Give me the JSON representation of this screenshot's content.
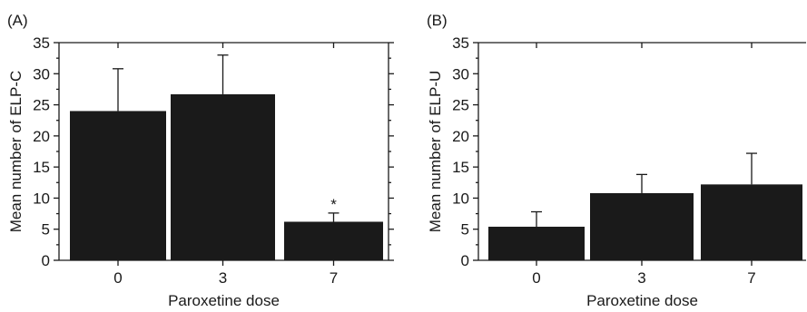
{
  "chart_data": [
    {
      "type": "bar",
      "panel_label": "(A)",
      "categories": [
        "0",
        "3",
        "7"
      ],
      "values": [
        24,
        26.7,
        6.2
      ],
      "error_upper": [
        30.8,
        33,
        7.6
      ],
      "annotations": [
        "",
        "",
        "*"
      ],
      "xlabel": "Paroxetine dose",
      "ylabel": "Mean number of ELP-C",
      "ylim": [
        0,
        35
      ],
      "yticks": [
        "0",
        "5",
        "10",
        "15",
        "20",
        "25",
        "30",
        "35"
      ],
      "grid": false
    },
    {
      "type": "bar",
      "panel_label": "(B)",
      "categories": [
        "0",
        "3",
        "7"
      ],
      "values": [
        5.4,
        10.8,
        12.2
      ],
      "error_upper": [
        7.8,
        13.8,
        17.2
      ],
      "annotations": [
        "",
        "",
        ""
      ],
      "xlabel": "Paroxetine dose",
      "ylabel": "Mean number of ELP-U",
      "ylim": [
        0,
        35
      ],
      "yticks": [
        "0",
        "5",
        "10",
        "15",
        "20",
        "25",
        "30",
        "35"
      ],
      "grid": false
    }
  ]
}
